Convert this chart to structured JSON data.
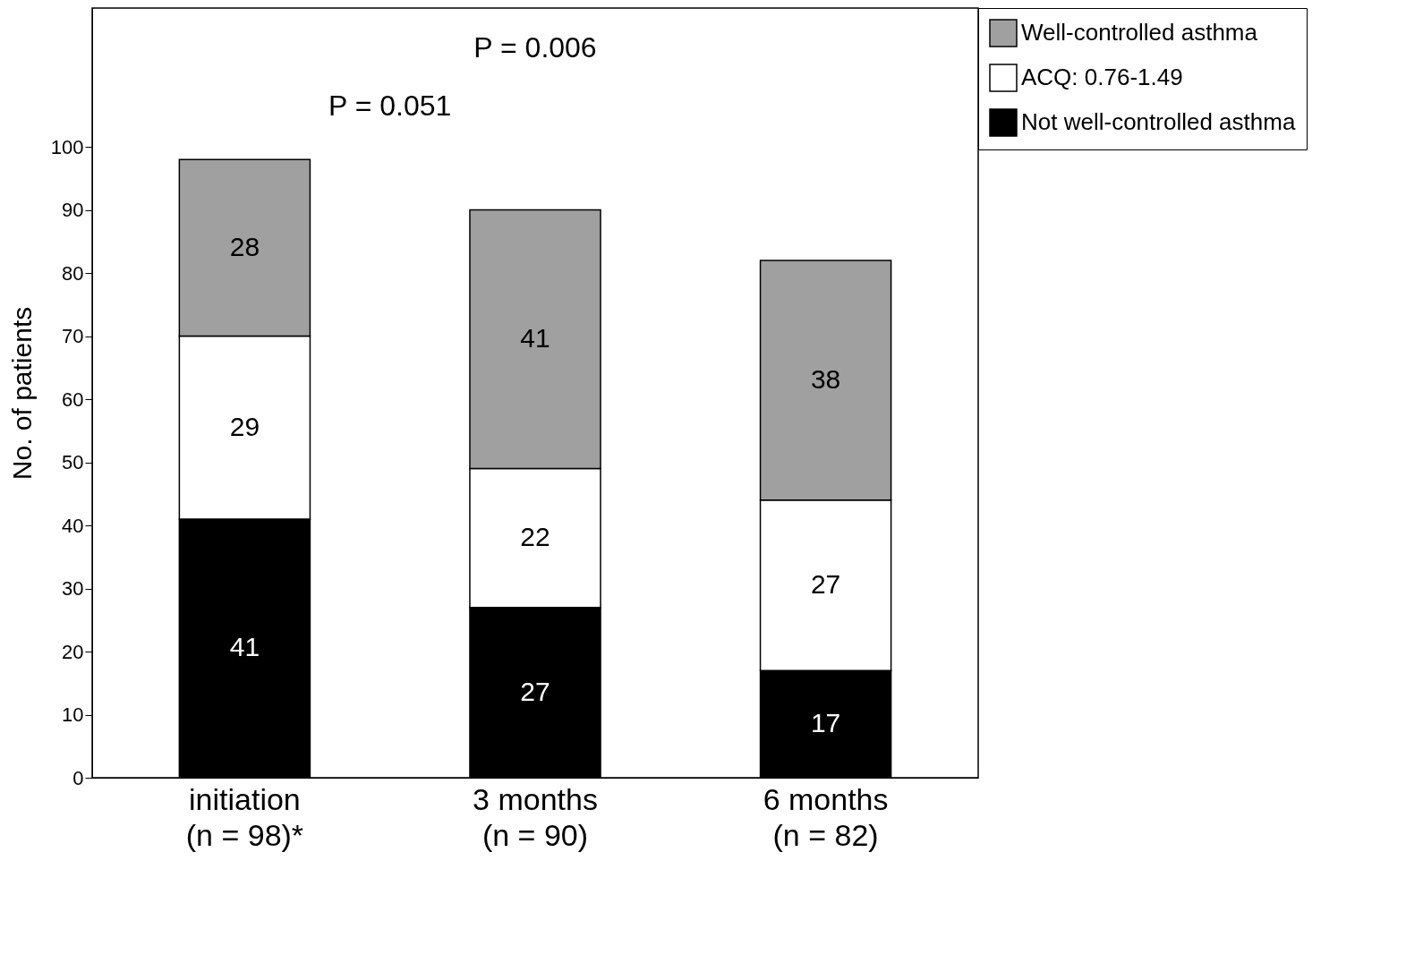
{
  "chart_data": {
    "type": "bar",
    "stacked": true,
    "ylabel": "No. of patients",
    "categories": [
      "initiation\n(n = 98)*",
      "3 months\n(n = 90)",
      "6 months\n(n = 82)"
    ],
    "series": [
      {
        "name": "Not well-controlled asthma",
        "color": "#000000",
        "values": [
          41,
          27,
          17
        ]
      },
      {
        "name": "ACQ: 0.76-1.49",
        "color": "#ffffff",
        "values": [
          29,
          22,
          27
        ]
      },
      {
        "name": "Well-controlled asthma",
        "color": "#a0a0a0",
        "values": [
          28,
          41,
          38
        ]
      }
    ],
    "ylim": [
      0,
      122
    ],
    "yticks": [
      0,
      10,
      20,
      30,
      40,
      50,
      60,
      70,
      80,
      90,
      100
    ],
    "data_labels": true,
    "grid": false,
    "legend": "right",
    "annotations": [
      "P = 0.006",
      "P = 0.051"
    ]
  }
}
